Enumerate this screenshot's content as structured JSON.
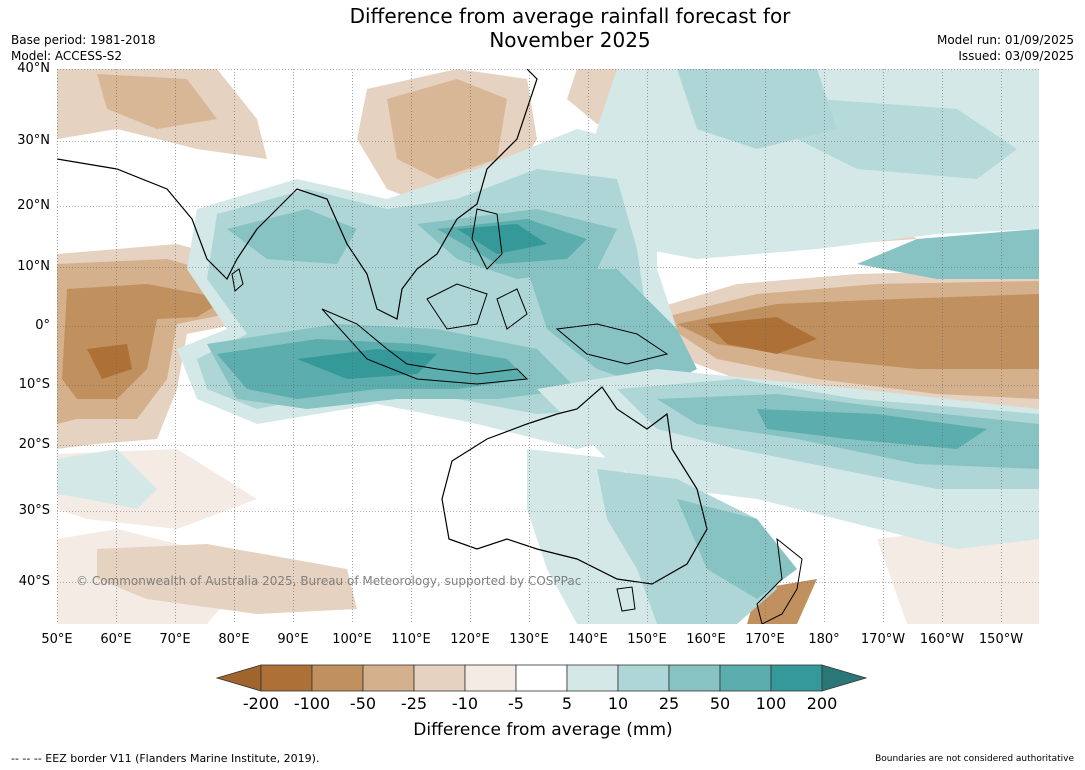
{
  "title_line1": "Difference from average rainfall forecast for",
  "title_line2": "November 2025",
  "base_period": "Base period: 1981-2018",
  "model": "Model: ACCESS-S2",
  "model_run": "Model run: 01/09/2025",
  "issued": "Issued: 03/09/2025",
  "lat_labels": [
    "40°N",
    "30°N",
    "20°N",
    "10°N",
    "0°",
    "10°S",
    "20°S",
    "30°S",
    "40°S"
  ],
  "lon_labels": [
    "50°E",
    "60°E",
    "70°E",
    "80°E",
    "90°E",
    "100°E",
    "110°E",
    "120°E",
    "130°E",
    "140°E",
    "150°E",
    "160°E",
    "170°E",
    "180°",
    "170°W",
    "160°W",
    "150°W"
  ],
  "copyright": "© Commonwealth of Australia 2025, Bureau of Meteorology, supported by COSPPac",
  "colorbar": {
    "ticks": [
      "-200",
      "-100",
      "-50",
      "-25",
      "-10",
      "-5",
      "5",
      "10",
      "25",
      "50",
      "100",
      "200"
    ],
    "colors": [
      "#a0642d",
      "#ad7138",
      "#c0905f",
      "#d4b08c",
      "#e6d2c0",
      "#f3ebe4",
      "#ffffff",
      "#d4e8e8",
      "#aed6d6",
      "#86c3c2",
      "#5cadad",
      "#35999a",
      "#2a7777"
    ],
    "title": "Difference from average (mm)"
  },
  "footer_left": "--  --  -- EEZ border V11 (Flanders Marine Institute, 2019).",
  "footer_right": "Boundaries are not considered authoritative"
}
